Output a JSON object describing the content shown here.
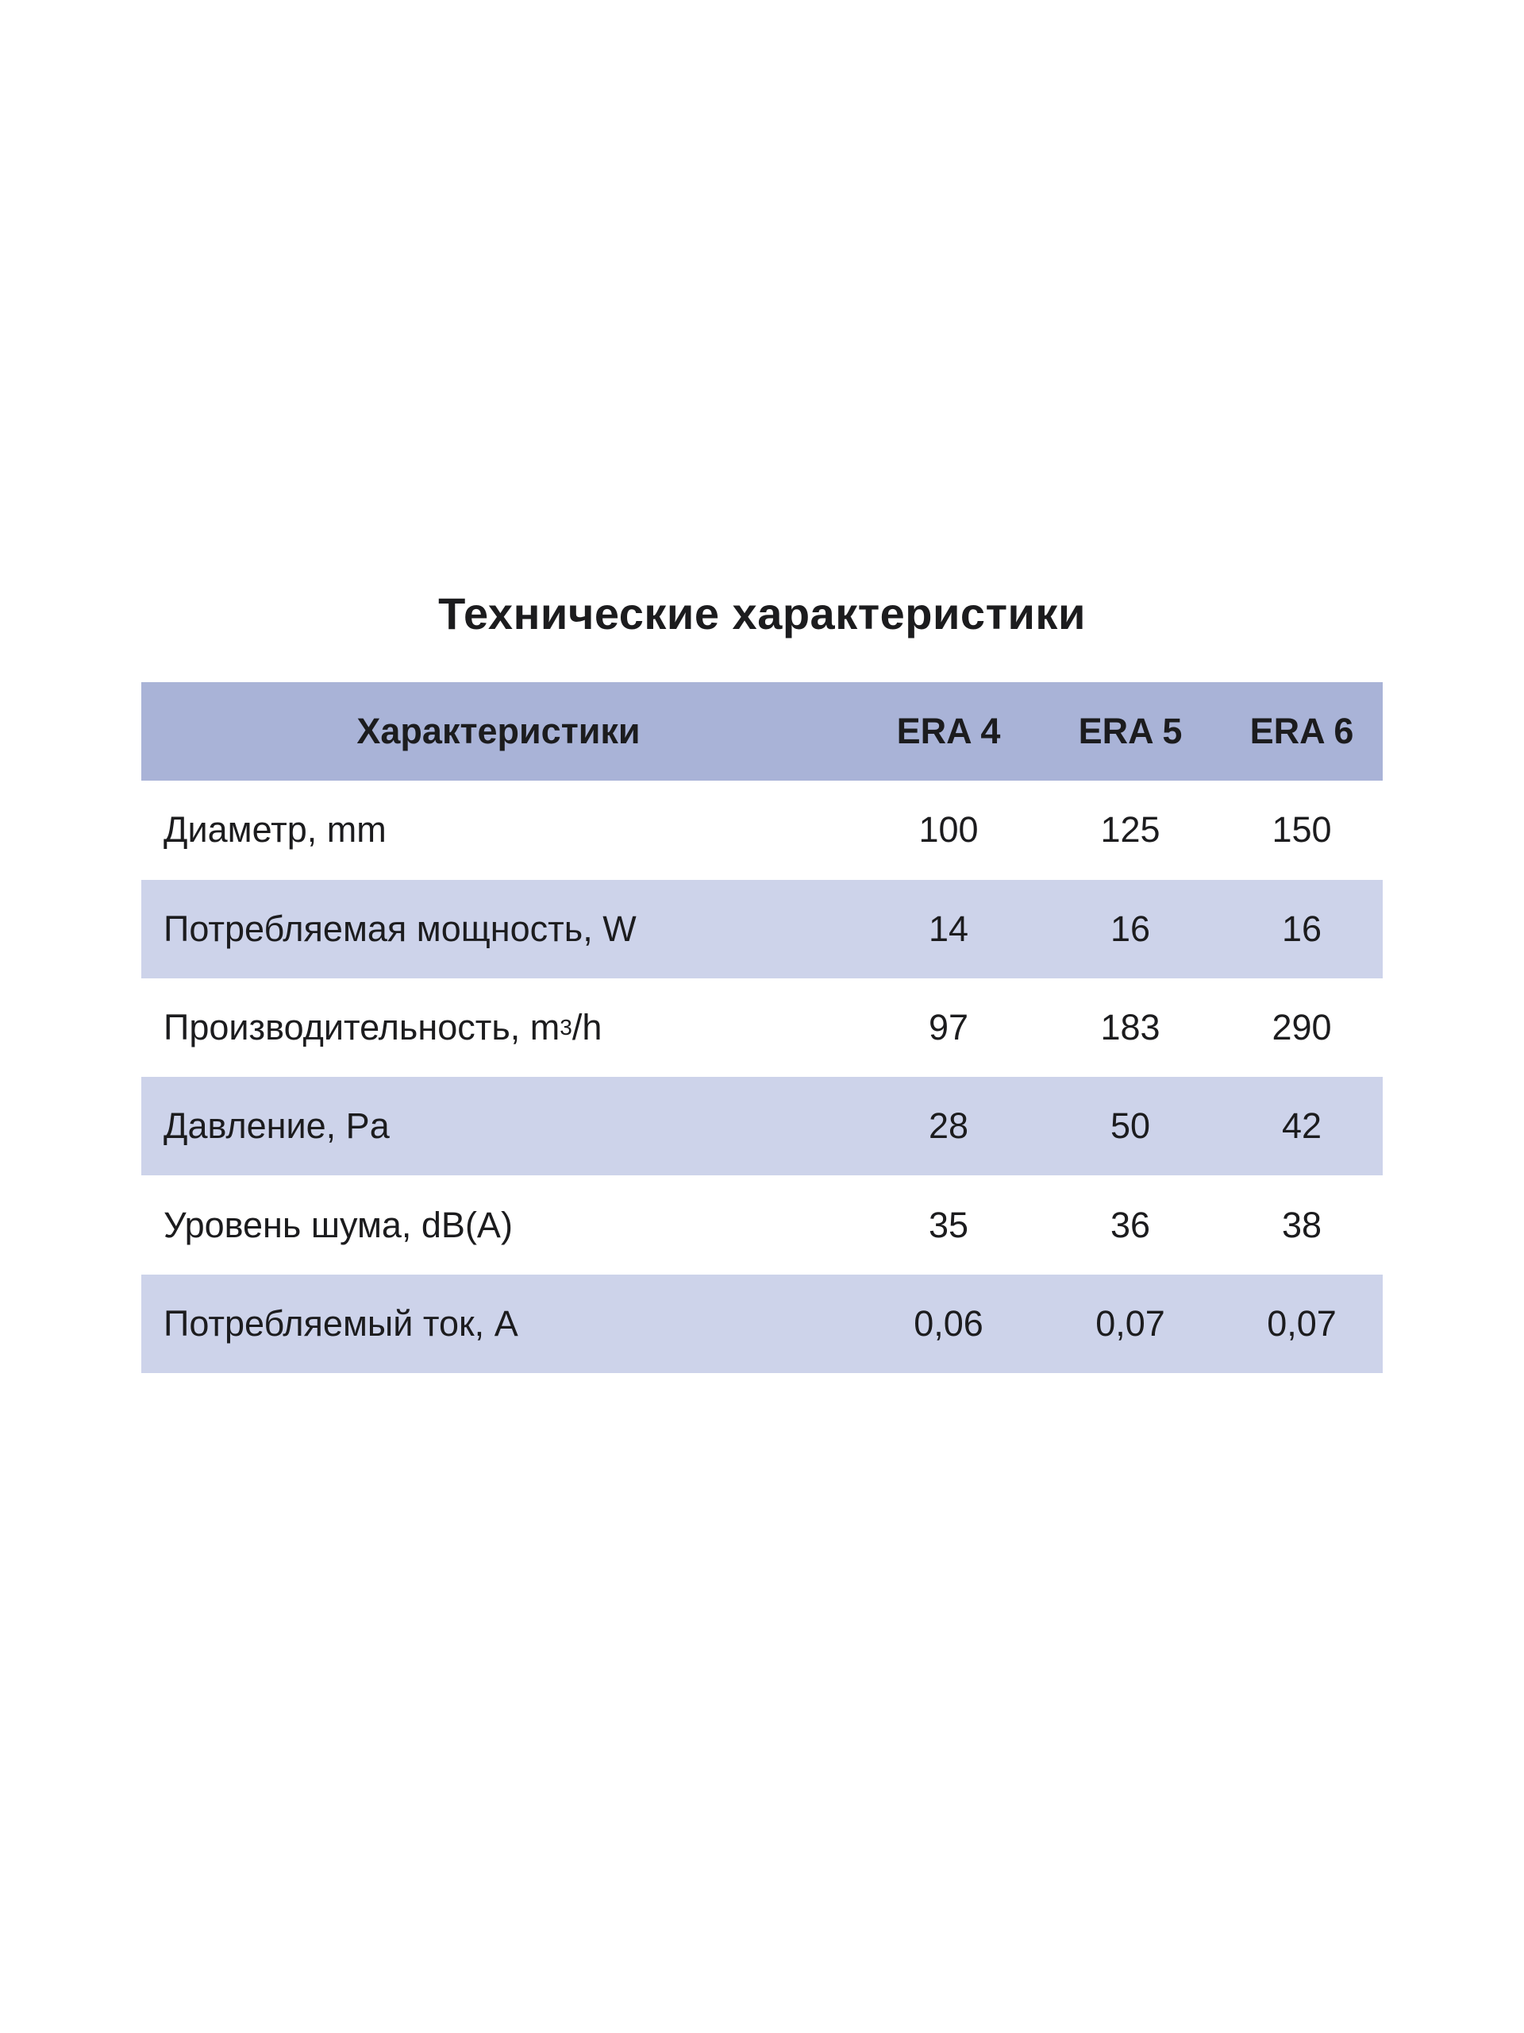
{
  "title": "Технические характеристики",
  "table": {
    "header": {
      "label": "Характеристики",
      "models": [
        "ERA 4",
        "ERA 5",
        "ERA 6"
      ]
    },
    "rows": [
      {
        "label": "Диаметр, mm",
        "values": [
          "100",
          "125",
          "150"
        ]
      },
      {
        "label": "Потребляемая мощность, W",
        "values": [
          "14",
          "16",
          "16"
        ]
      },
      {
        "label_prefix": "Производительность, m",
        "label_sup": "3",
        "label_suffix": "/h",
        "values": [
          "97",
          "183",
          "290"
        ]
      },
      {
        "label": "Давление, Pa",
        "values": [
          "28",
          "50",
          "42"
        ]
      },
      {
        "label": "Уровень шума, dB(A)",
        "values": [
          "35",
          "36",
          "38"
        ]
      },
      {
        "label": "Потребляемый ток, A",
        "values": [
          "0,06",
          "0,07",
          "0,07"
        ]
      }
    ]
  },
  "colors": {
    "header_bg": "#a9b3d7",
    "stripe_bg": "#cdd3ea",
    "text": "#1c1c1e"
  }
}
